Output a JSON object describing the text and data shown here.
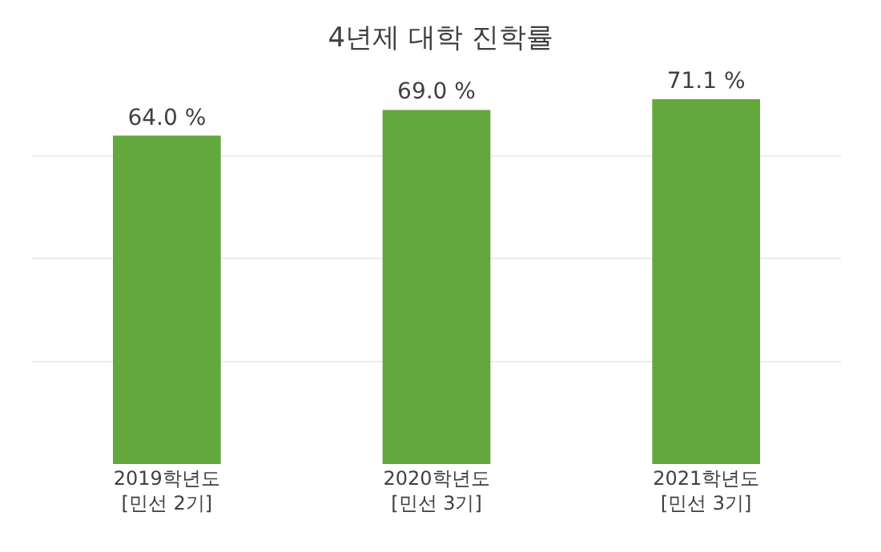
{
  "chart_data": {
    "type": "bar",
    "title": "4년제 대학 진학률",
    "categories": [
      "2019학년도\n[민선 2기]",
      "2020학년도\n[민선 3기]",
      "2021학년도\n[민선 3기]"
    ],
    "values": [
      64.0,
      69.0,
      71.1
    ],
    "value_labels": [
      "64.0 %",
      "69.0 %",
      "71.1 %"
    ],
    "color": "#62a83c",
    "grid": "y",
    "tick_labels": "x",
    "legend": false
  }
}
